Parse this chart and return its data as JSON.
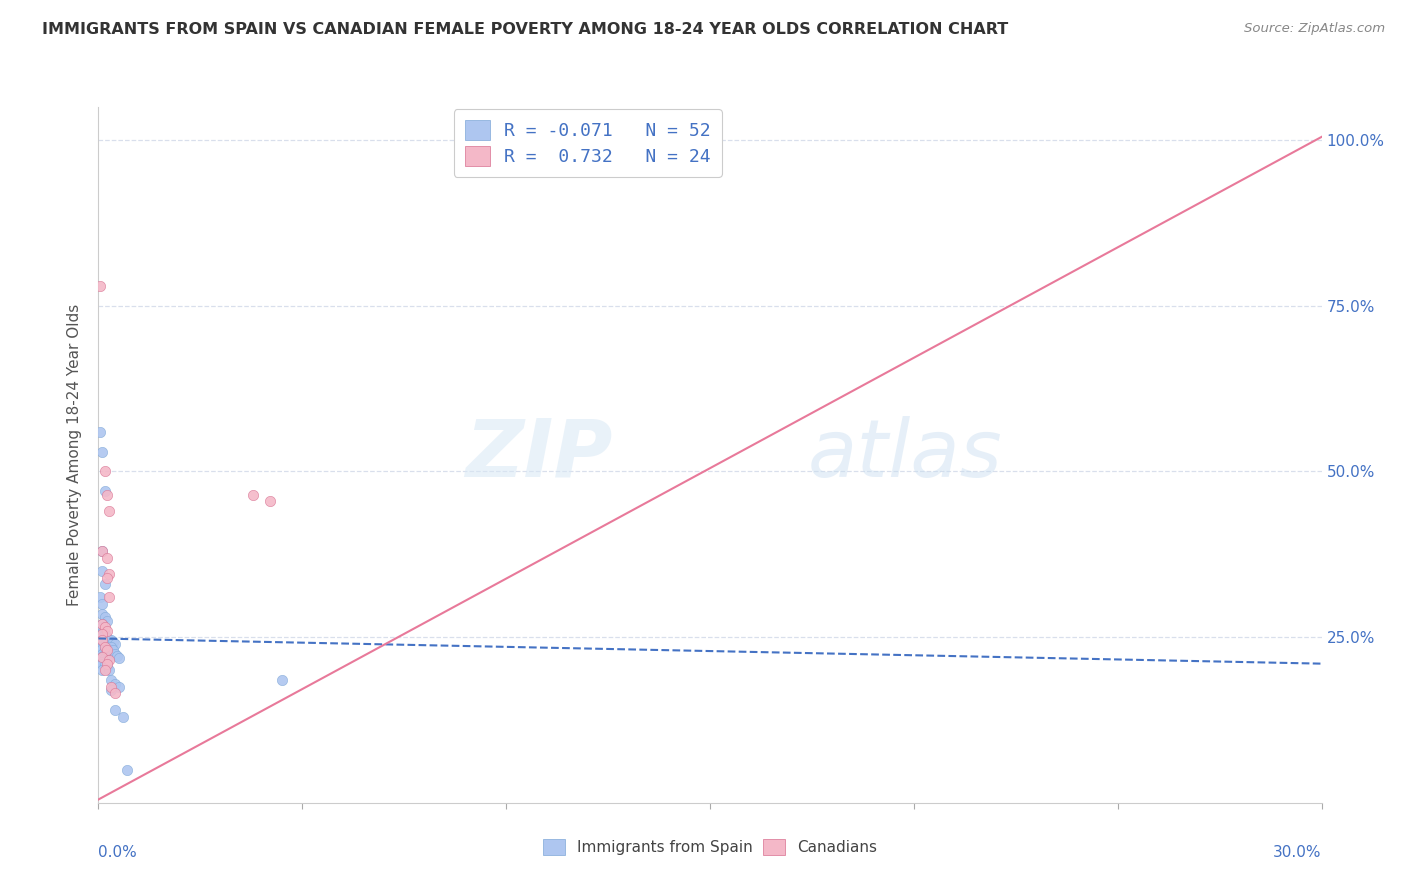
{
  "title": "IMMIGRANTS FROM SPAIN VS CANADIAN FEMALE POVERTY AMONG 18-24 YEAR OLDS CORRELATION CHART",
  "source": "Source: ZipAtlas.com",
  "ylabel": "Female Poverty Among 18-24 Year Olds",
  "watermark": "ZIPatlas",
  "legend_entries": [
    {
      "label": "R = -0.071   N = 52",
      "color": "#aec6f0"
    },
    {
      "label": "R =  0.732   N = 24",
      "color": "#f4b8c8"
    }
  ],
  "legend_labels": [
    "Immigrants from Spain",
    "Canadians"
  ],
  "blue_scatter": [
    [
      0.0005,
      0.56
    ],
    [
      0.001,
      0.53
    ],
    [
      0.0015,
      0.47
    ],
    [
      0.0008,
      0.38
    ],
    [
      0.001,
      0.35
    ],
    [
      0.0015,
      0.33
    ],
    [
      0.0005,
      0.31
    ],
    [
      0.0008,
      0.3
    ],
    [
      0.001,
      0.285
    ],
    [
      0.0015,
      0.28
    ],
    [
      0.002,
      0.275
    ],
    [
      0.001,
      0.27
    ],
    [
      0.0008,
      0.265
    ],
    [
      0.0012,
      0.26
    ],
    [
      0.0015,
      0.255
    ],
    [
      0.001,
      0.25
    ],
    [
      0.002,
      0.248
    ],
    [
      0.0025,
      0.245
    ],
    [
      0.001,
      0.242
    ],
    [
      0.0015,
      0.24
    ],
    [
      0.002,
      0.238
    ],
    [
      0.001,
      0.235
    ],
    [
      0.0008,
      0.232
    ],
    [
      0.0015,
      0.23
    ],
    [
      0.002,
      0.228
    ],
    [
      0.001,
      0.225
    ],
    [
      0.0012,
      0.222
    ],
    [
      0.0008,
      0.22
    ],
    [
      0.0015,
      0.218
    ],
    [
      0.002,
      0.215
    ],
    [
      0.001,
      0.212
    ],
    [
      0.0008,
      0.21
    ],
    [
      0.0015,
      0.208
    ],
    [
      0.002,
      0.205
    ],
    [
      0.001,
      0.2
    ],
    [
      0.0025,
      0.2
    ],
    [
      0.003,
      0.245
    ],
    [
      0.0035,
      0.242
    ],
    [
      0.004,
      0.24
    ],
    [
      0.003,
      0.235
    ],
    [
      0.0035,
      0.23
    ],
    [
      0.004,
      0.225
    ],
    [
      0.0045,
      0.222
    ],
    [
      0.005,
      0.218
    ],
    [
      0.003,
      0.185
    ],
    [
      0.004,
      0.18
    ],
    [
      0.005,
      0.175
    ],
    [
      0.003,
      0.17
    ],
    [
      0.004,
      0.14
    ],
    [
      0.006,
      0.13
    ],
    [
      0.007,
      0.05
    ],
    [
      0.045,
      0.185
    ]
  ],
  "pink_scatter": [
    [
      0.0005,
      0.78
    ],
    [
      0.0015,
      0.5
    ],
    [
      0.002,
      0.465
    ],
    [
      0.0025,
      0.44
    ],
    [
      0.001,
      0.38
    ],
    [
      0.002,
      0.37
    ],
    [
      0.0025,
      0.345
    ],
    [
      0.002,
      0.34
    ],
    [
      0.0025,
      0.31
    ],
    [
      0.001,
      0.27
    ],
    [
      0.0015,
      0.265
    ],
    [
      0.002,
      0.26
    ],
    [
      0.0008,
      0.255
    ],
    [
      0.001,
      0.245
    ],
    [
      0.0015,
      0.235
    ],
    [
      0.002,
      0.23
    ],
    [
      0.0008,
      0.22
    ],
    [
      0.0025,
      0.215
    ],
    [
      0.002,
      0.21
    ],
    [
      0.0015,
      0.2
    ],
    [
      0.003,
      0.175
    ],
    [
      0.004,
      0.165
    ],
    [
      0.038,
      0.465
    ],
    [
      0.042,
      0.455
    ]
  ],
  "blue_line_x": [
    0.0,
    0.3
  ],
  "blue_line_y": [
    0.248,
    0.21
  ],
  "pink_line_x": [
    0.0,
    0.3
  ],
  "pink_line_y": [
    0.005,
    1.005
  ],
  "xlim": [
    0.0,
    0.3
  ],
  "ylim": [
    0.0,
    1.05
  ],
  "xticks": [
    0.0,
    0.05,
    0.1,
    0.15,
    0.2,
    0.25,
    0.3
  ],
  "yticks": [
    0.25,
    0.5,
    0.75,
    1.0
  ],
  "ytick_labels": [
    "25.0%",
    "50.0%",
    "75.0%",
    "100.0%"
  ],
  "blue_color": "#aec6f0",
  "pink_color": "#f4b8c8",
  "blue_line_color": "#4472c4",
  "pink_line_color": "#e8799a",
  "bg_color": "#ffffff",
  "grid_color": "#d0d8e8",
  "title_color": "#333333",
  "axis_label_color": "#4472c4"
}
